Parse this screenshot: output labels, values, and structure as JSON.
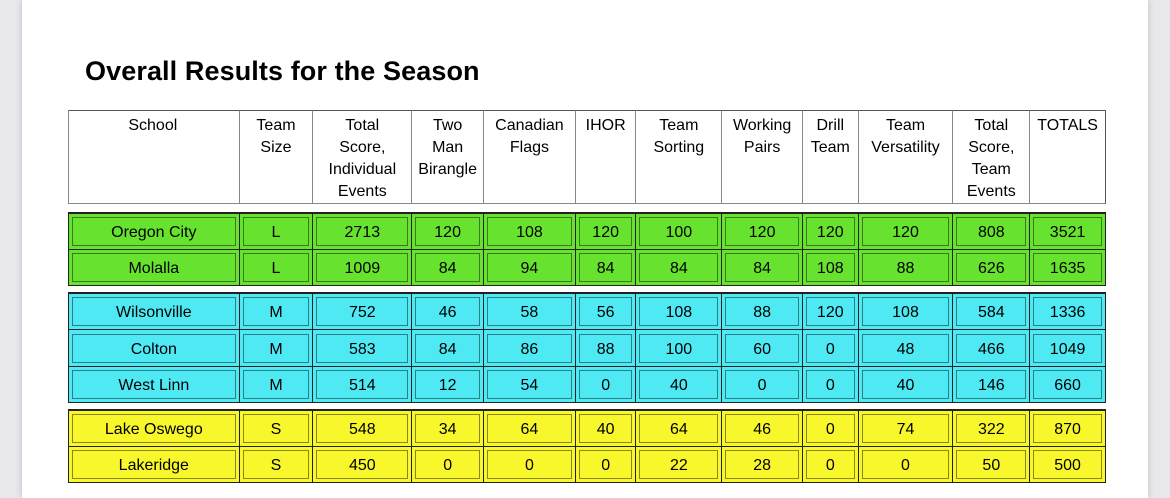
{
  "title": "Overall Results for the Season",
  "colors": {
    "large": "#66e22f",
    "medium": "#4fe9f4",
    "small": "#f7f72c"
  },
  "columns": [
    "School",
    "Team Size",
    "Total Score, Individual Events",
    "Two Man Birangle",
    "Canadian Flags",
    "IHOR",
    "Team Sorting",
    "Working Pairs",
    "Drill Team",
    "Team Versatility",
    "Total Score, Team Events",
    "TOTALS"
  ],
  "rows": [
    [
      "Oregon City",
      "L",
      "2713",
      "120",
      "108",
      "120",
      "100",
      "120",
      "120",
      "120",
      "808",
      "3521"
    ],
    [
      "Molalla",
      "L",
      "1009",
      "84",
      "94",
      "84",
      "84",
      "84",
      "108",
      "88",
      "626",
      "1635"
    ],
    [
      "Wilsonville",
      "M",
      "752",
      "46",
      "58",
      "56",
      "108",
      "88",
      "120",
      "108",
      "584",
      "1336"
    ],
    [
      "Colton",
      "M",
      "583",
      "84",
      "86",
      "88",
      "100",
      "60",
      "0",
      "48",
      "466",
      "1049"
    ],
    [
      "West Linn",
      "M",
      "514",
      "12",
      "54",
      "0",
      "40",
      "0",
      "0",
      "40",
      "146",
      "660"
    ],
    [
      "Lake Oswego",
      "S",
      "548",
      "34",
      "64",
      "40",
      "64",
      "46",
      "0",
      "74",
      "322",
      "870"
    ],
    [
      "Lakeridge",
      "S",
      "450",
      "0",
      "0",
      "0",
      "22",
      "28",
      "0",
      "0",
      "50",
      "500"
    ]
  ]
}
